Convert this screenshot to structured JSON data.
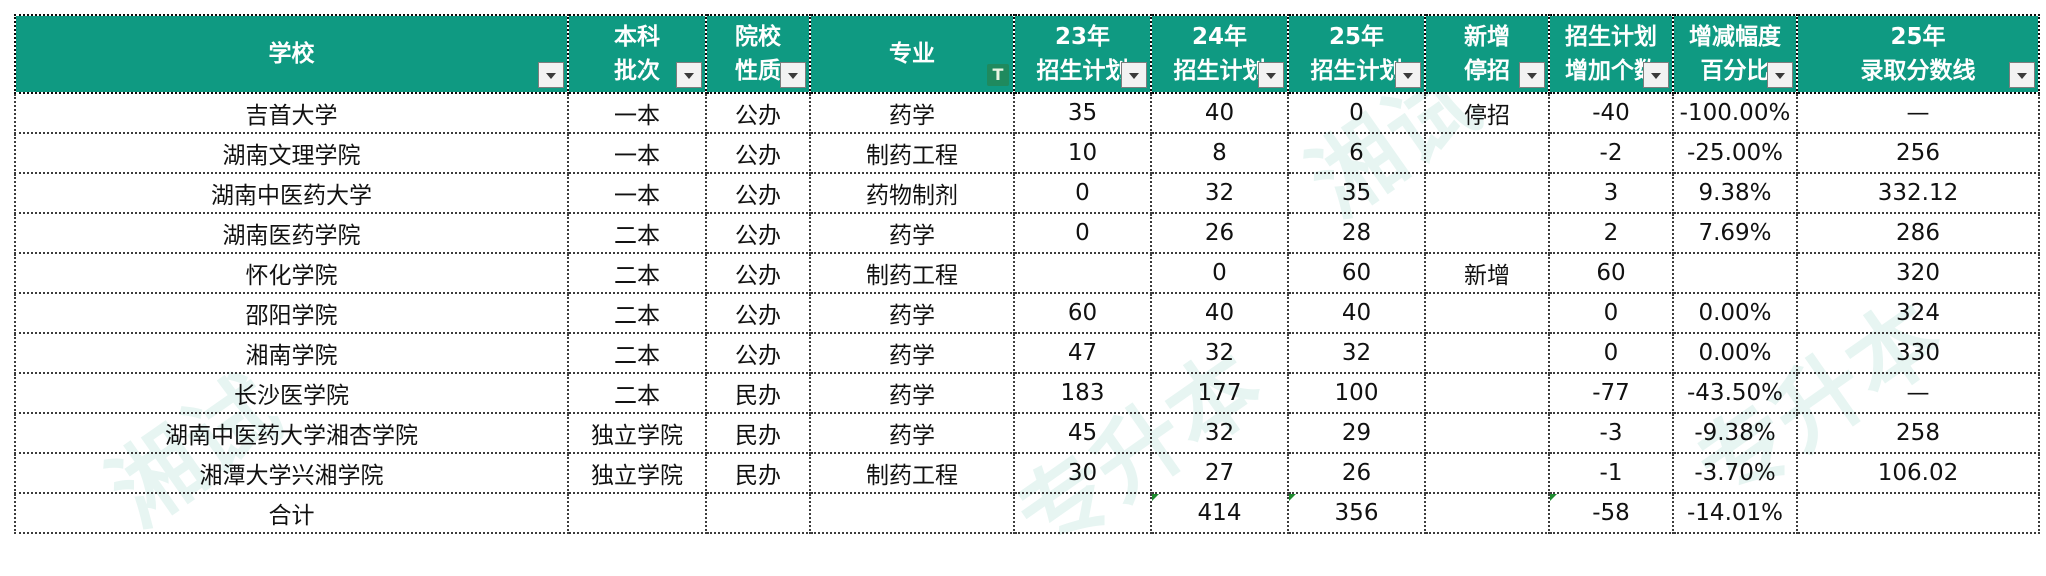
{
  "header": {
    "school": "学校",
    "batch": [
      "本科",
      "批次"
    ],
    "nature": [
      "院校",
      "性质"
    ],
    "major": "专业",
    "plan23": [
      "23年",
      "招生计划"
    ],
    "plan24": [
      "24年",
      "招生计划"
    ],
    "plan25": [
      "25年",
      "招生计划"
    ],
    "status": [
      "新增",
      "停招"
    ],
    "increase": [
      "招生计划",
      "增加个数"
    ],
    "change_pct": [
      "增减幅度",
      "百分比"
    ],
    "score25": [
      "25年",
      "录取分数线"
    ]
  },
  "rows": [
    {
      "school": "吉首大学",
      "batch": "一本",
      "nature": "公办",
      "major": "药学",
      "plan23": "35",
      "plan24": "40",
      "plan25": "0",
      "status": "停招",
      "increase": "-40",
      "change_pct": "-100.00%",
      "score25": "—"
    },
    {
      "school": "湖南文理学院",
      "batch": "一本",
      "nature": "公办",
      "major": "制药工程",
      "plan23": "10",
      "plan24": "8",
      "plan25": "6",
      "status": "",
      "increase": "-2",
      "change_pct": "-25.00%",
      "score25": "256"
    },
    {
      "school": "湖南中医药大学",
      "batch": "一本",
      "nature": "公办",
      "major": "药物制剂",
      "plan23": "0",
      "plan24": "32",
      "plan25": "35",
      "status": "",
      "increase": "3",
      "change_pct": "9.38%",
      "score25": "332.12"
    },
    {
      "school": "湖南医药学院",
      "batch": "二本",
      "nature": "公办",
      "major": "药学",
      "plan23": "0",
      "plan24": "26",
      "plan25": "28",
      "status": "",
      "increase": "2",
      "change_pct": "7.69%",
      "score25": "286"
    },
    {
      "school": "怀化学院",
      "batch": "二本",
      "nature": "公办",
      "major": "制药工程",
      "plan23": "",
      "plan24": "0",
      "plan25": "60",
      "status": "新增",
      "increase": "60",
      "change_pct": "",
      "score25": "320"
    },
    {
      "school": "邵阳学院",
      "batch": "二本",
      "nature": "公办",
      "major": "药学",
      "plan23": "60",
      "plan24": "40",
      "plan25": "40",
      "status": "",
      "increase": "0",
      "change_pct": "0.00%",
      "score25": "324"
    },
    {
      "school": "湘南学院",
      "batch": "二本",
      "nature": "公办",
      "major": "药学",
      "plan23": "47",
      "plan24": "32",
      "plan25": "32",
      "status": "",
      "increase": "0",
      "change_pct": "0.00%",
      "score25": "330"
    },
    {
      "school": "长沙医学院",
      "batch": "二本",
      "nature": "民办",
      "major": "药学",
      "plan23": "183",
      "plan24": "177",
      "plan25": "100",
      "status": "",
      "increase": "-77",
      "change_pct": "-43.50%",
      "score25": "—"
    },
    {
      "school": "湖南中医药大学湘杏学院",
      "batch": "独立学院",
      "nature": "民办",
      "major": "药学",
      "plan23": "45",
      "plan24": "32",
      "plan25": "29",
      "status": "",
      "increase": "-3",
      "change_pct": "-9.38%",
      "score25": "258"
    },
    {
      "school": "湘潭大学兴湘学院",
      "batch": "独立学院",
      "nature": "民办",
      "major": "制药工程",
      "plan23": "30",
      "plan24": "27",
      "plan25": "26",
      "status": "",
      "increase": "-1",
      "change_pct": "-3.70%",
      "score25": "106.02"
    }
  ],
  "total": {
    "school": "合计",
    "batch": "",
    "nature": "",
    "major": "",
    "plan23": "",
    "plan24": "414",
    "plan25": "356",
    "status": "",
    "increase": "-58",
    "change_pct": "-14.01%",
    "score25": ""
  },
  "watermark": {
    "text1": "湘试",
    "text2": "专升本"
  },
  "colors": {
    "header_bg": "#0f9a82",
    "header_text": "#ffffff",
    "grid": "#3c3c3c",
    "marker": "#1e8b2f"
  },
  "icons": {
    "filter": "filter-dropdown-icon",
    "active_filter": "funnel-filter-icon"
  }
}
